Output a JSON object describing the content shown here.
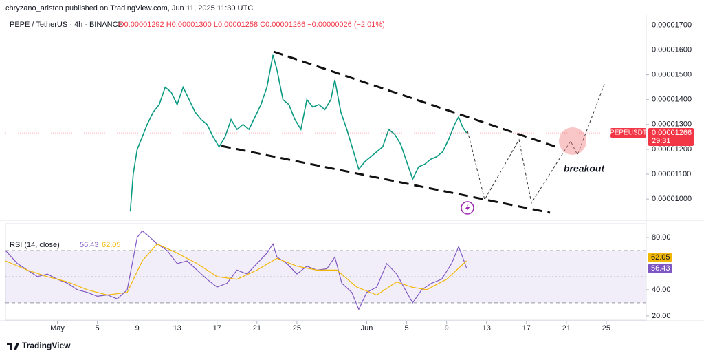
{
  "header": {
    "byline": "chryzano_ariston published on TradingView.com, Jun 11, 2025 11:30 UTC"
  },
  "footer": {
    "brand": "TradingView"
  },
  "chart_data": [
    {
      "type": "line",
      "title": "PEPE / TetherUS · 4h · BINANCE",
      "ohlc_text": "O0.00001292 H0.00001300 L0.00001258 C0.00001266 −0.00000026 (−2.01%)",
      "price_tag": "0.00001266",
      "countdown": "29:31",
      "annotation": "breakout",
      "xlim": [
        -5.2,
        59
      ],
      "xticks": [
        {
          "value": 0,
          "label": "May"
        },
        {
          "value": 4,
          "label": "5"
        },
        {
          "value": 8,
          "label": "9"
        },
        {
          "value": 12,
          "label": "13"
        },
        {
          "value": 16,
          "label": "17"
        },
        {
          "value": 20,
          "label": "21"
        },
        {
          "value": 24,
          "label": "25"
        },
        {
          "value": 31,
          "label": "Jun"
        },
        {
          "value": 35,
          "label": "5"
        },
        {
          "value": 39,
          "label": "9"
        },
        {
          "value": 43,
          "label": "13"
        },
        {
          "value": 47,
          "label": "17"
        },
        {
          "value": 51,
          "label": "21"
        },
        {
          "value": 55,
          "label": "25"
        }
      ],
      "ylim": [
        9.2e-06,
        1.74e-05
      ],
      "yticks": [
        {
          "value": 1e-05,
          "label": "0.00001000"
        },
        {
          "value": 1.1e-05,
          "label": "0.00001100"
        },
        {
          "value": 1.2e-05,
          "label": "0.00001200"
        },
        {
          "value": 1.3e-05,
          "label": "0.00001300"
        },
        {
          "value": 1.4e-05,
          "label": "0.00001400"
        },
        {
          "value": 1.5e-05,
          "label": "0.00001500"
        },
        {
          "value": 1.6e-05,
          "label": "0.00001600"
        },
        {
          "value": 1.7e-05,
          "label": "0.00001700"
        }
      ],
      "series": [
        {
          "name": "PEPEUSDT",
          "color": "#089981",
          "x": [
            7.3,
            7.6,
            8.0,
            8.5,
            9.0,
            9.6,
            10.2,
            10.8,
            11.4,
            12.0,
            12.6,
            13.2,
            13.8,
            14.4,
            15.0,
            15.6,
            16.2,
            16.8,
            17.4,
            18.0,
            18.6,
            19.2,
            19.8,
            20.4,
            21.0,
            21.6,
            22.0,
            22.6,
            23.2,
            23.8,
            24.4,
            25.0,
            25.6,
            26.2,
            26.8,
            27.4,
            27.8,
            28.4,
            29.0,
            29.6,
            30.2,
            30.8,
            31.4,
            32.0,
            32.6,
            33.2,
            33.8,
            34.4,
            35.0,
            35.6,
            36.2,
            36.8,
            37.4,
            38.0,
            38.6,
            39.2,
            39.8,
            40.2,
            40.6,
            41.0
          ],
          "values": [
            9.5e-06,
            1.1e-05,
            1.2e-05,
            1.25e-05,
            1.3e-05,
            1.35e-05,
            1.38e-05,
            1.45e-05,
            1.43e-05,
            1.38e-05,
            1.45e-05,
            1.4e-05,
            1.35e-05,
            1.32e-05,
            1.3e-05,
            1.25e-05,
            1.21e-05,
            1.25e-05,
            1.32e-05,
            1.28e-05,
            1.3e-05,
            1.28e-05,
            1.33e-05,
            1.38e-05,
            1.45e-05,
            1.58e-05,
            1.52e-05,
            1.4e-05,
            1.38e-05,
            1.32e-05,
            1.28e-05,
            1.4e-05,
            1.37e-05,
            1.38e-05,
            1.36e-05,
            1.4e-05,
            1.48e-05,
            1.35e-05,
            1.28e-05,
            1.2e-05,
            1.12e-05,
            1.15e-05,
            1.17e-05,
            1.19e-05,
            1.21e-05,
            1.28e-05,
            1.26e-05,
            1.22e-05,
            1.15e-05,
            1.08e-05,
            1.13e-05,
            1.14e-05,
            1.16e-05,
            1.17e-05,
            1.19e-05,
            1.24e-05,
            1.3e-05,
            1.33e-05,
            1.29e-05,
            1.266e-05
          ]
        }
      ]
    },
    {
      "type": "line",
      "title": "RSI (14, close)",
      "xlim": [
        -5.2,
        59
      ],
      "ylim": [
        16.8,
        90.5
      ],
      "yticks": [
        {
          "value": 20,
          "label": "20.00"
        },
        {
          "value": 40,
          "label": "40.00"
        },
        {
          "value": 80,
          "label": "80.00"
        }
      ],
      "bands": [
        30,
        50,
        70
      ],
      "series": [
        {
          "color": "#7e57c2",
          "x": [
            -5.2,
            -4,
            -3,
            -2,
            -1,
            0,
            1,
            2,
            3,
            4,
            5,
            6,
            7,
            7.5,
            8,
            8.5,
            9,
            10,
            11,
            12,
            13,
            14,
            15,
            16,
            17,
            18,
            19,
            20,
            21,
            21.6,
            22,
            23,
            24,
            25,
            26,
            27,
            27.8,
            28.5,
            29.5,
            30.2,
            31,
            32,
            33,
            34,
            35,
            35.6,
            36.5,
            37.5,
            38.5,
            39.5,
            40.2,
            40.6,
            41
          ],
          "values": [
            70,
            60,
            55,
            50,
            52,
            48,
            45,
            40,
            38,
            35,
            36,
            33,
            40,
            60,
            80,
            85,
            82,
            75,
            70,
            60,
            62,
            55,
            48,
            42,
            45,
            55,
            52,
            60,
            68,
            75,
            65,
            60,
            52,
            58,
            55,
            56,
            65,
            45,
            38,
            25,
            38,
            42,
            60,
            52,
            38,
            30,
            40,
            45,
            48,
            60,
            73,
            65,
            56.43
          ]
        },
        {
          "color": "#f2b705",
          "x": [
            -5.2,
            -3,
            -1,
            1,
            3,
            5,
            7,
            8.5,
            10,
            12,
            14,
            16,
            18,
            20,
            22,
            24,
            26,
            28,
            30,
            32,
            34,
            35.5,
            37,
            39,
            41
          ],
          "values": [
            62,
            55,
            50,
            46,
            40,
            36,
            38,
            62,
            75,
            68,
            60,
            50,
            48,
            55,
            64,
            58,
            55,
            55,
            42,
            36,
            46,
            42,
            40,
            48,
            62.05
          ]
        }
      ]
    }
  ]
}
